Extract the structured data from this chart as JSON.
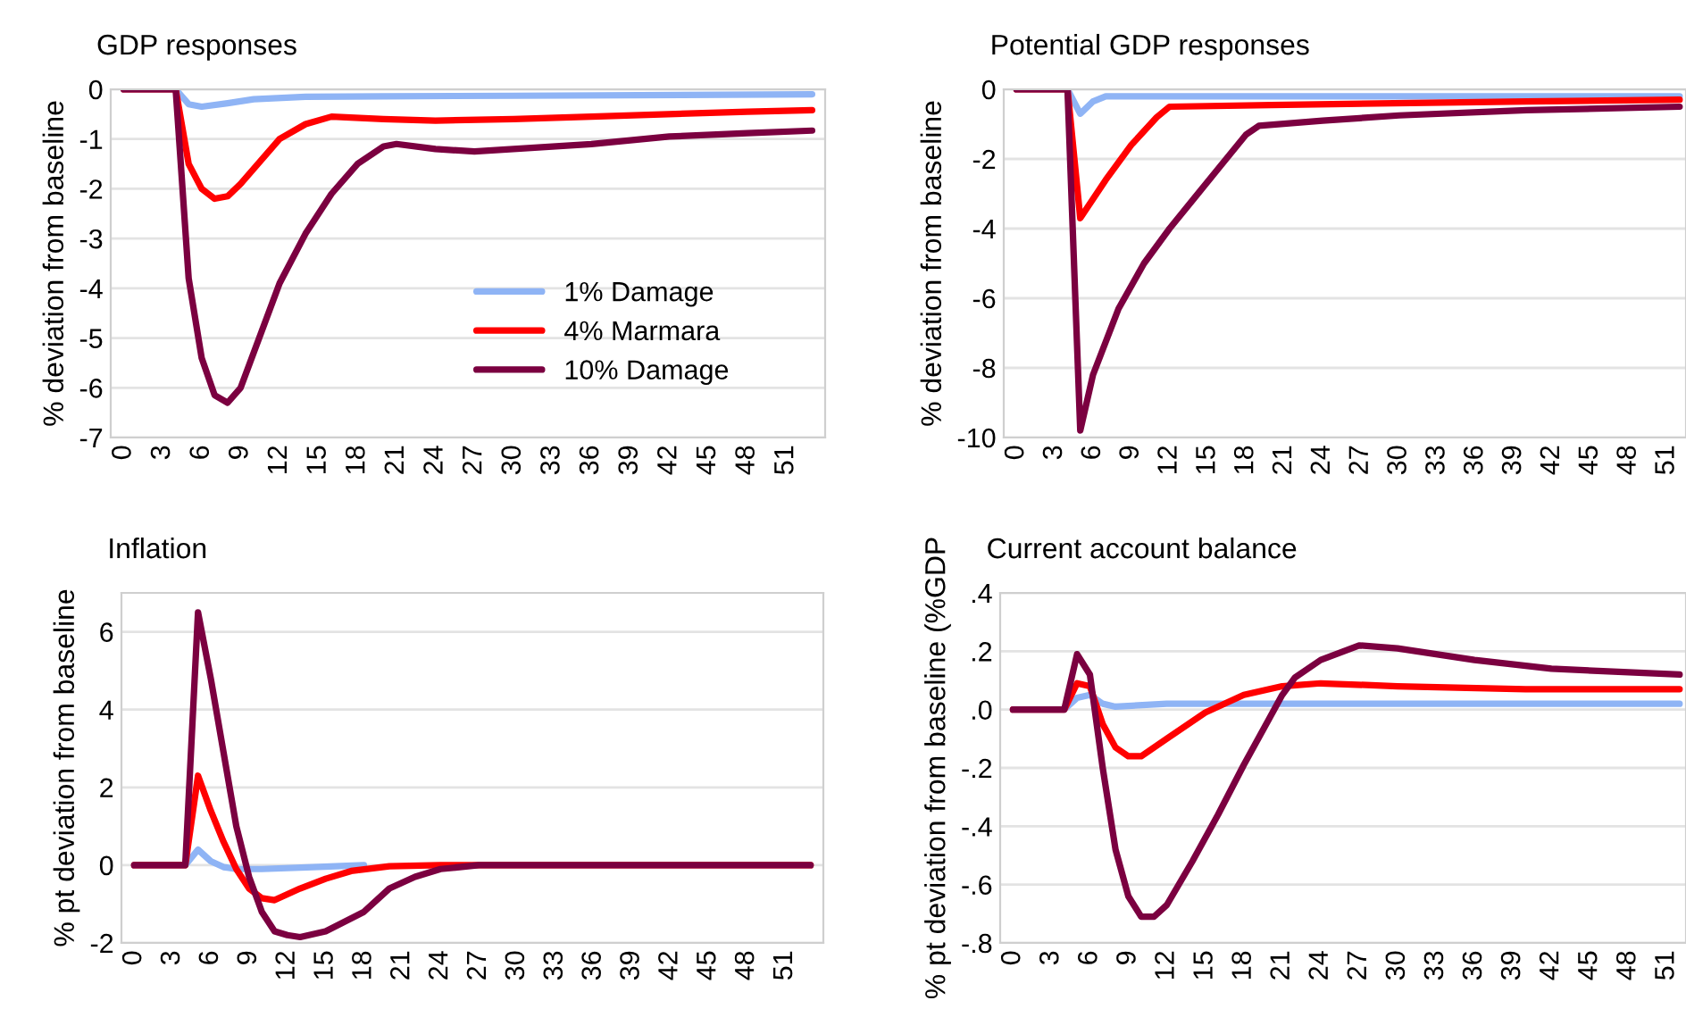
{
  "chart_data": [
    {
      "type": "line",
      "title": "GDP responses",
      "ylabel": "% deviation from baseline",
      "xlim": [
        -1,
        54
      ],
      "xticks": [
        0,
        3,
        6,
        9,
        12,
        15,
        18,
        21,
        24,
        27,
        30,
        33,
        36,
        39,
        42,
        45,
        48,
        51
      ],
      "ylim": [
        -7,
        0
      ],
      "yticks": [
        -7,
        -6,
        -5,
        -4,
        -3,
        -2,
        -1,
        0
      ],
      "grid": "y",
      "legend": "center right",
      "line_style": "solid",
      "marker": "none",
      "series": [
        {
          "name": "1% Damage",
          "color": "#8fb4f5",
          "x": [
            0,
            4,
            5,
            6,
            8,
            10,
            14,
            20,
            30,
            53
          ],
          "values": [
            0,
            0,
            -0.3,
            -0.35,
            -0.28,
            -0.2,
            -0.15,
            -0.14,
            -0.13,
            -0.1
          ]
        },
        {
          "name": "4% Marmara",
          "color": "#ff0000",
          "x": [
            0,
            4,
            5,
            6,
            7,
            8,
            9,
            10,
            12,
            14,
            16,
            20,
            24,
            30,
            36,
            48,
            53
          ],
          "values": [
            0,
            0,
            -1.5,
            -2.0,
            -2.2,
            -2.15,
            -1.9,
            -1.6,
            -1.0,
            -0.7,
            -0.55,
            -0.6,
            -0.63,
            -0.6,
            -0.55,
            -0.45,
            -0.42
          ]
        },
        {
          "name": "10% Damage",
          "color": "#7b0040",
          "x": [
            0,
            4,
            5,
            6,
            7,
            8,
            9,
            10,
            12,
            14,
            16,
            18,
            20,
            21,
            24,
            27,
            30,
            36,
            42,
            48,
            53
          ],
          "values": [
            0,
            0,
            -3.8,
            -5.4,
            -6.15,
            -6.3,
            -6.0,
            -5.3,
            -3.9,
            -2.9,
            -2.1,
            -1.5,
            -1.15,
            -1.1,
            -1.2,
            -1.25,
            -1.2,
            -1.1,
            -0.95,
            -0.88,
            -0.83
          ]
        }
      ]
    },
    {
      "type": "line",
      "title": "Potential GDP responses",
      "ylabel": "% deviation from baseline",
      "xlim": [
        -1,
        52.5
      ],
      "xticks": [
        0,
        3,
        6,
        9,
        12,
        15,
        18,
        21,
        24,
        27,
        30,
        33,
        36,
        39,
        42,
        45,
        48,
        51
      ],
      "ylim": [
        -10,
        0
      ],
      "yticks": [
        -10,
        -8,
        -6,
        -4,
        -2,
        0
      ],
      "grid": "y",
      "line_style": "solid",
      "marker": "none",
      "series": [
        {
          "color": "#8fb4f5",
          "x": [
            0,
            4,
            5,
            6,
            7,
            52
          ],
          "values": [
            0,
            0,
            -0.7,
            -0.35,
            -0.2,
            -0.2
          ]
        },
        {
          "color": "#ff0000",
          "x": [
            0,
            4,
            5,
            7,
            9,
            11,
            12,
            20,
            40,
            52
          ],
          "values": [
            0,
            0,
            -3.7,
            -2.6,
            -1.6,
            -0.8,
            -0.5,
            -0.45,
            -0.35,
            -0.3
          ]
        },
        {
          "color": "#7b0040",
          "x": [
            0,
            4,
            5,
            6,
            8,
            10,
            12,
            14,
            16,
            18,
            19,
            24,
            30,
            40,
            52
          ],
          "values": [
            0,
            0,
            -9.8,
            -8.2,
            -6.3,
            -5.0,
            -4.0,
            -3.1,
            -2.2,
            -1.3,
            -1.05,
            -0.9,
            -0.75,
            -0.6,
            -0.5
          ]
        }
      ]
    },
    {
      "type": "line",
      "title": "Inflation",
      "ylabel": "% pt deviation from baseline",
      "xlim": [
        -1,
        54
      ],
      "xticks": [
        0,
        3,
        6,
        9,
        12,
        15,
        18,
        21,
        24,
        27,
        30,
        33,
        36,
        39,
        42,
        45,
        48,
        51
      ],
      "ylim": [
        -2,
        7
      ],
      "yticks": [
        -2,
        0,
        2,
        4,
        6
      ],
      "grid": "y",
      "line_style": "solid",
      "marker": "none",
      "series": [
        {
          "color": "#8fb4f5",
          "x": [
            0,
            4,
            5,
            6,
            7,
            8,
            10,
            14,
            18
          ],
          "values": [
            0,
            0,
            0.4,
            0.1,
            -0.05,
            -0.1,
            -0.1,
            -0.05,
            0
          ]
        },
        {
          "color": "#ff0000",
          "x": [
            0,
            4,
            5,
            6,
            7,
            8,
            9,
            10,
            11,
            13,
            15,
            17,
            20,
            24,
            53
          ],
          "values": [
            0,
            0,
            2.3,
            1.4,
            0.6,
            -0.1,
            -0.6,
            -0.85,
            -0.9,
            -0.6,
            -0.35,
            -0.15,
            -0.03,
            0,
            0
          ]
        },
        {
          "color": "#7b0040",
          "x": [
            0,
            4,
            5,
            6,
            7,
            8,
            9,
            10,
            11,
            12,
            13,
            15,
            18,
            20,
            22,
            24,
            27,
            53
          ],
          "values": [
            0,
            0,
            6.5,
            4.8,
            2.9,
            1.0,
            -0.3,
            -1.2,
            -1.7,
            -1.8,
            -1.85,
            -1.7,
            -1.2,
            -0.6,
            -0.3,
            -0.1,
            0,
            0
          ]
        }
      ]
    },
    {
      "type": "line",
      "title": "Current account balance",
      "ylabel": "% pt deviation from baseline (%GDP",
      "xlim": [
        -1,
        52.5
      ],
      "xticks": [
        0,
        3,
        6,
        9,
        12,
        15,
        18,
        21,
        24,
        27,
        30,
        33,
        36,
        39,
        42,
        45,
        48,
        51
      ],
      "ylim": [
        -0.8,
        0.4
      ],
      "yticks": [
        {
          "value": -0.8,
          "label": "-.8"
        },
        {
          "value": -0.6,
          "label": "-.6"
        },
        {
          "value": -0.4,
          "label": "-.4"
        },
        {
          "value": -0.2,
          "label": "-.2"
        },
        {
          "value": 0,
          "label": ".0"
        },
        {
          "value": 0.2,
          "label": ".2"
        },
        {
          "value": 0.4,
          "label": ".4"
        }
      ],
      "grid": "y",
      "line_style": "solid",
      "marker": "none",
      "series": [
        {
          "color": "#8fb4f5",
          "x": [
            0,
            4,
            5,
            6,
            7,
            8,
            12,
            52
          ],
          "values": [
            0,
            0,
            0.04,
            0.05,
            0.02,
            0.01,
            0.02,
            0.02
          ]
        },
        {
          "color": "#ff0000",
          "x": [
            0,
            4,
            5,
            6,
            7,
            8,
            9,
            10,
            12,
            15,
            18,
            21,
            24,
            30,
            40,
            52
          ],
          "values": [
            0,
            0,
            0.09,
            0.08,
            -0.05,
            -0.13,
            -0.16,
            -0.16,
            -0.1,
            -0.01,
            0.05,
            0.08,
            0.09,
            0.08,
            0.07,
            0.07
          ]
        },
        {
          "color": "#7b0040",
          "x": [
            0,
            4,
            5,
            6,
            7,
            8,
            9,
            10,
            11,
            12,
            14,
            16,
            18,
            20,
            21,
            22,
            24,
            27,
            30,
            36,
            42,
            52
          ],
          "values": [
            0,
            0,
            0.19,
            0.12,
            -0.2,
            -0.48,
            -0.64,
            -0.71,
            -0.71,
            -0.67,
            -0.52,
            -0.36,
            -0.19,
            -0.03,
            0.05,
            0.11,
            0.17,
            0.22,
            0.21,
            0.17,
            0.14,
            0.12
          ]
        }
      ]
    }
  ]
}
